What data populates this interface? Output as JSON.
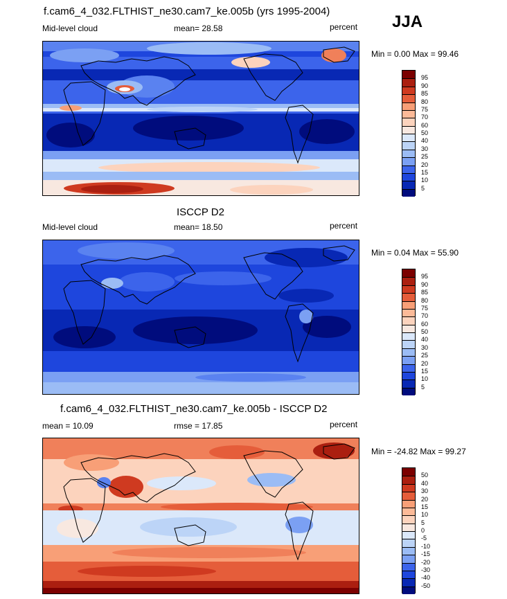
{
  "season": "JJA",
  "colors": {
    "seq": [
      "#000c7d",
      "#0828b4",
      "#1e46dd",
      "#3c64eb",
      "#5a82f0",
      "#7ba0f3",
      "#9bbcf5",
      "#bcd4f7",
      "#dbe8fa",
      "#f8e8e0",
      "#fcd3bd",
      "#fcba98",
      "#f89f77",
      "#f0805a",
      "#e55d3a",
      "#cf3a20",
      "#ab1f10",
      "#7b0000"
    ],
    "diff": [
      "#000c7d",
      "#0828b4",
      "#1e46dd",
      "#3c64eb",
      "#5a82f0",
      "#7ba0f3",
      "#9bbcf5",
      "#bcd4f7",
      "#dbe8fa",
      "#f8e8e0",
      "#fcd3bd",
      "#fcba98",
      "#f89f77",
      "#f0805a",
      "#e55d3a",
      "#cf3a20",
      "#ab1f10",
      "#7b0000"
    ]
  },
  "chart_data": [
    {
      "type": "heatmap",
      "title": "f.cam6_4_032.FLTHIST_ne30.cam7_ke.005b (yrs 1995-2004)",
      "left_label": "Mid-level cloud",
      "center_label": "mean=  28.58",
      "units": "percent",
      "min_max": "Min =   0.00 Max =  99.46",
      "levels": [
        "95",
        "90",
        "85",
        "80",
        "75",
        "70",
        "60",
        "50",
        "40",
        "30",
        "25",
        "20",
        "15",
        "10",
        "5"
      ]
    },
    {
      "type": "heatmap",
      "title": "ISCCP D2",
      "left_label": "Mid-level cloud",
      "center_label": "mean=  18.50",
      "units": "percent",
      "min_max": "Min =   0.04 Max =  55.90",
      "levels": [
        "95",
        "90",
        "85",
        "80",
        "75",
        "70",
        "60",
        "50",
        "40",
        "30",
        "25",
        "20",
        "15",
        "10",
        "5"
      ]
    },
    {
      "type": "heatmap",
      "title": "f.cam6_4_032.FLTHIST_ne30.cam7_ke.005b - ISCCP D2",
      "left_label": "mean =  10.09",
      "center_label": "rmse =  17.85",
      "units": "percent",
      "min_max": "Min = -24.82 Max =  99.27",
      "levels": [
        "50",
        "40",
        "30",
        "20",
        "15",
        "10",
        "5",
        "0",
        "-5",
        "-10",
        "-15",
        "-20",
        "-30",
        "-40",
        "-50"
      ]
    }
  ]
}
